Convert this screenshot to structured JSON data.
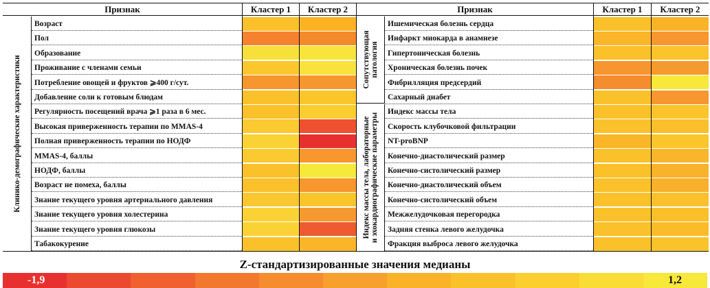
{
  "headers": {
    "feature": "Признак",
    "cluster1": "Кластер 1",
    "cluster2": "Кластер 2"
  },
  "left": {
    "group_label": "Клинико-демографические характеристики",
    "rows": [
      {
        "label": "Возраст",
        "c1": "#fcc02a",
        "c2": "#fbb323"
      },
      {
        "label": "Пол",
        "c1": "#f5822e",
        "c2": "#f38a2b"
      },
      {
        "label": "Образование",
        "c1": "#f8e03a",
        "c2": "#f9e43c"
      },
      {
        "label": "Проживание с членами семьи",
        "c1": "#fbc72c",
        "c2": "#f9e23b"
      },
      {
        "label": "Потребление овощей и фруктов ⩾400 г/сут.",
        "c1": "#f7952e",
        "c2": "#f7962e"
      },
      {
        "label": "Добавление соли к готовым блюдам",
        "c1": "#fbc12a",
        "c2": "#fac62b"
      },
      {
        "label": "Регулярность посещений врача ⩾1 раза в 6 мес.",
        "c1": "#fbc12a",
        "c2": "#fbce30"
      },
      {
        "label": "Высокая приверженность терапии по MMAS-4",
        "c1": "#fbc930",
        "c2": "#ee5130"
      },
      {
        "label": "Полная приверженность терапии по НОДФ",
        "c1": "#fbd236",
        "c2": "#e8312f"
      },
      {
        "label": "MMAS-4, баллы",
        "c1": "#fbc930",
        "c2": "#f8972e"
      },
      {
        "label": "НОДФ, баллы",
        "c1": "#fbc12a",
        "c2": "#f7e939"
      },
      {
        "label": "Возраст не помеха, баллы",
        "c1": "#fbc12a",
        "c2": "#f8972e"
      },
      {
        "label": "Знание текущего уровня артериального давления",
        "c1": "#fbc730",
        "c2": "#fac42b"
      },
      {
        "label": "Знание текущего уровня холестерина",
        "c1": "#fbd236",
        "c2": "#f69a2f"
      },
      {
        "label": "Знание текущего уровня глюкозы",
        "c1": "#fbd236",
        "c2": "#ee5b30"
      },
      {
        "label": "Табакокурение",
        "c1": "#fbc12a",
        "c2": "#fbb528"
      }
    ]
  },
  "right": {
    "groups": [
      {
        "label_line1": "Сопутствующая",
        "label_line2": "патология",
        "count": 6
      },
      {
        "label_line1": "Индекс массы тела, лабораторные",
        "label_line2": "и эхокардиографические параметры",
        "count": 10
      }
    ],
    "rows": [
      {
        "label": "Ишемическая болезнь сердца",
        "c1": "#fbc12a",
        "c2": "#fab328"
      },
      {
        "label": "Инфаркт миокарда в анамнезе",
        "c1": "#fbb528",
        "c2": "#f8962f"
      },
      {
        "label": "Гипертоническая болезнь",
        "c1": "#fbc12a",
        "c2": "#fbc42b"
      },
      {
        "label": "Хроническая болезнь почек",
        "c1": "#f7962e",
        "c2": "#f59a2f"
      },
      {
        "label": "Фибрилляция предсердий",
        "c1": "#f58c2d",
        "c2": "#f7e83a"
      },
      {
        "label": "Сахарный диабет",
        "c1": "#fbc12a",
        "c2": "#f89630"
      },
      {
        "label": "Индекс массы тела",
        "c1": "#fbc12a",
        "c2": "#fbc42b"
      },
      {
        "label": "Скорость клубочковой фильтрации",
        "c1": "#fbc12a",
        "c2": "#fbbf2b"
      },
      {
        "label": "NT-proBNP",
        "c1": "#fbb528",
        "c2": "#fbc62c"
      },
      {
        "label": "Конечно-диастолический размер",
        "c1": "#fbc12a",
        "c2": "#f9b62a"
      },
      {
        "label": "Конечно-систолический размер",
        "c1": "#fbc12a",
        "c2": "#f9b32a"
      },
      {
        "label": "Конечно-диастолический объем",
        "c1": "#fbc12a",
        "c2": "#f9b02a"
      },
      {
        "label": "Конечно-систолический объем",
        "c1": "#fbc12a",
        "c2": "#fbc02b"
      },
      {
        "label": "Межжелудочковая перегородка",
        "c1": "#fbc12a",
        "c2": "#fbbf2a"
      },
      {
        "label": "Задняя стенка левого желудочка",
        "c1": "#fbc12a",
        "c2": "#fbbc2a"
      },
      {
        "label": "Фракция выброса левого желудочка",
        "c1": "#fbc12a",
        "c2": "#fbc32b"
      }
    ]
  },
  "scale": {
    "title": "Z-стандартизированные значения медианы",
    "min_label": "-1,9",
    "max_label": "1,2",
    "colors": [
      "#e8312f",
      "#ec4a30",
      "#f06030",
      "#f3782f",
      "#f58c2d",
      "#f8a02d",
      "#fab328",
      "#fbc12a",
      "#fbcf30",
      "#f9dd36",
      "#f8e83a"
    ]
  }
}
